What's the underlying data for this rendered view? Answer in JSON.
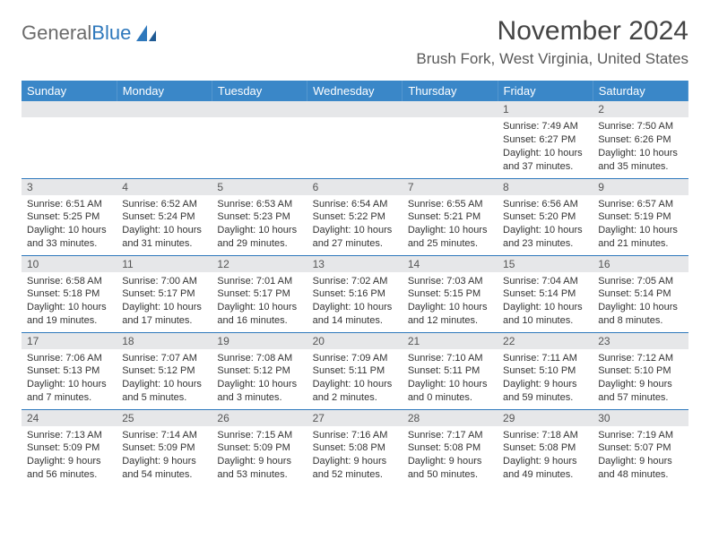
{
  "brand": {
    "word1": "General",
    "word2": "Blue"
  },
  "title": "November 2024",
  "location": "Brush Fork, West Virginia, United States",
  "colors": {
    "header_bg": "#3a87c8",
    "header_fg": "#ffffff",
    "daynum_bg": "#e6e7e9",
    "rule": "#2e78bc",
    "text": "#333333",
    "logo_gray": "#6b6b6b",
    "logo_blue": "#2e78bc"
  },
  "weekdays": [
    "Sunday",
    "Monday",
    "Tuesday",
    "Wednesday",
    "Thursday",
    "Friday",
    "Saturday"
  ],
  "weeks": [
    [
      {
        "n": "",
        "sunrise": "",
        "sunset": "",
        "day": ""
      },
      {
        "n": "",
        "sunrise": "",
        "sunset": "",
        "day": ""
      },
      {
        "n": "",
        "sunrise": "",
        "sunset": "",
        "day": ""
      },
      {
        "n": "",
        "sunrise": "",
        "sunset": "",
        "day": ""
      },
      {
        "n": "",
        "sunrise": "",
        "sunset": "",
        "day": ""
      },
      {
        "n": "1",
        "sunrise": "Sunrise: 7:49 AM",
        "sunset": "Sunset: 6:27 PM",
        "day": "Daylight: 10 hours and 37 minutes."
      },
      {
        "n": "2",
        "sunrise": "Sunrise: 7:50 AM",
        "sunset": "Sunset: 6:26 PM",
        "day": "Daylight: 10 hours and 35 minutes."
      }
    ],
    [
      {
        "n": "3",
        "sunrise": "Sunrise: 6:51 AM",
        "sunset": "Sunset: 5:25 PM",
        "day": "Daylight: 10 hours and 33 minutes."
      },
      {
        "n": "4",
        "sunrise": "Sunrise: 6:52 AM",
        "sunset": "Sunset: 5:24 PM",
        "day": "Daylight: 10 hours and 31 minutes."
      },
      {
        "n": "5",
        "sunrise": "Sunrise: 6:53 AM",
        "sunset": "Sunset: 5:23 PM",
        "day": "Daylight: 10 hours and 29 minutes."
      },
      {
        "n": "6",
        "sunrise": "Sunrise: 6:54 AM",
        "sunset": "Sunset: 5:22 PM",
        "day": "Daylight: 10 hours and 27 minutes."
      },
      {
        "n": "7",
        "sunrise": "Sunrise: 6:55 AM",
        "sunset": "Sunset: 5:21 PM",
        "day": "Daylight: 10 hours and 25 minutes."
      },
      {
        "n": "8",
        "sunrise": "Sunrise: 6:56 AM",
        "sunset": "Sunset: 5:20 PM",
        "day": "Daylight: 10 hours and 23 minutes."
      },
      {
        "n": "9",
        "sunrise": "Sunrise: 6:57 AM",
        "sunset": "Sunset: 5:19 PM",
        "day": "Daylight: 10 hours and 21 minutes."
      }
    ],
    [
      {
        "n": "10",
        "sunrise": "Sunrise: 6:58 AM",
        "sunset": "Sunset: 5:18 PM",
        "day": "Daylight: 10 hours and 19 minutes."
      },
      {
        "n": "11",
        "sunrise": "Sunrise: 7:00 AM",
        "sunset": "Sunset: 5:17 PM",
        "day": "Daylight: 10 hours and 17 minutes."
      },
      {
        "n": "12",
        "sunrise": "Sunrise: 7:01 AM",
        "sunset": "Sunset: 5:17 PM",
        "day": "Daylight: 10 hours and 16 minutes."
      },
      {
        "n": "13",
        "sunrise": "Sunrise: 7:02 AM",
        "sunset": "Sunset: 5:16 PM",
        "day": "Daylight: 10 hours and 14 minutes."
      },
      {
        "n": "14",
        "sunrise": "Sunrise: 7:03 AM",
        "sunset": "Sunset: 5:15 PM",
        "day": "Daylight: 10 hours and 12 minutes."
      },
      {
        "n": "15",
        "sunrise": "Sunrise: 7:04 AM",
        "sunset": "Sunset: 5:14 PM",
        "day": "Daylight: 10 hours and 10 minutes."
      },
      {
        "n": "16",
        "sunrise": "Sunrise: 7:05 AM",
        "sunset": "Sunset: 5:14 PM",
        "day": "Daylight: 10 hours and 8 minutes."
      }
    ],
    [
      {
        "n": "17",
        "sunrise": "Sunrise: 7:06 AM",
        "sunset": "Sunset: 5:13 PM",
        "day": "Daylight: 10 hours and 7 minutes."
      },
      {
        "n": "18",
        "sunrise": "Sunrise: 7:07 AM",
        "sunset": "Sunset: 5:12 PM",
        "day": "Daylight: 10 hours and 5 minutes."
      },
      {
        "n": "19",
        "sunrise": "Sunrise: 7:08 AM",
        "sunset": "Sunset: 5:12 PM",
        "day": "Daylight: 10 hours and 3 minutes."
      },
      {
        "n": "20",
        "sunrise": "Sunrise: 7:09 AM",
        "sunset": "Sunset: 5:11 PM",
        "day": "Daylight: 10 hours and 2 minutes."
      },
      {
        "n": "21",
        "sunrise": "Sunrise: 7:10 AM",
        "sunset": "Sunset: 5:11 PM",
        "day": "Daylight: 10 hours and 0 minutes."
      },
      {
        "n": "22",
        "sunrise": "Sunrise: 7:11 AM",
        "sunset": "Sunset: 5:10 PM",
        "day": "Daylight: 9 hours and 59 minutes."
      },
      {
        "n": "23",
        "sunrise": "Sunrise: 7:12 AM",
        "sunset": "Sunset: 5:10 PM",
        "day": "Daylight: 9 hours and 57 minutes."
      }
    ],
    [
      {
        "n": "24",
        "sunrise": "Sunrise: 7:13 AM",
        "sunset": "Sunset: 5:09 PM",
        "day": "Daylight: 9 hours and 56 minutes."
      },
      {
        "n": "25",
        "sunrise": "Sunrise: 7:14 AM",
        "sunset": "Sunset: 5:09 PM",
        "day": "Daylight: 9 hours and 54 minutes."
      },
      {
        "n": "26",
        "sunrise": "Sunrise: 7:15 AM",
        "sunset": "Sunset: 5:09 PM",
        "day": "Daylight: 9 hours and 53 minutes."
      },
      {
        "n": "27",
        "sunrise": "Sunrise: 7:16 AM",
        "sunset": "Sunset: 5:08 PM",
        "day": "Daylight: 9 hours and 52 minutes."
      },
      {
        "n": "28",
        "sunrise": "Sunrise: 7:17 AM",
        "sunset": "Sunset: 5:08 PM",
        "day": "Daylight: 9 hours and 50 minutes."
      },
      {
        "n": "29",
        "sunrise": "Sunrise: 7:18 AM",
        "sunset": "Sunset: 5:08 PM",
        "day": "Daylight: 9 hours and 49 minutes."
      },
      {
        "n": "30",
        "sunrise": "Sunrise: 7:19 AM",
        "sunset": "Sunset: 5:07 PM",
        "day": "Daylight: 9 hours and 48 minutes."
      }
    ]
  ]
}
